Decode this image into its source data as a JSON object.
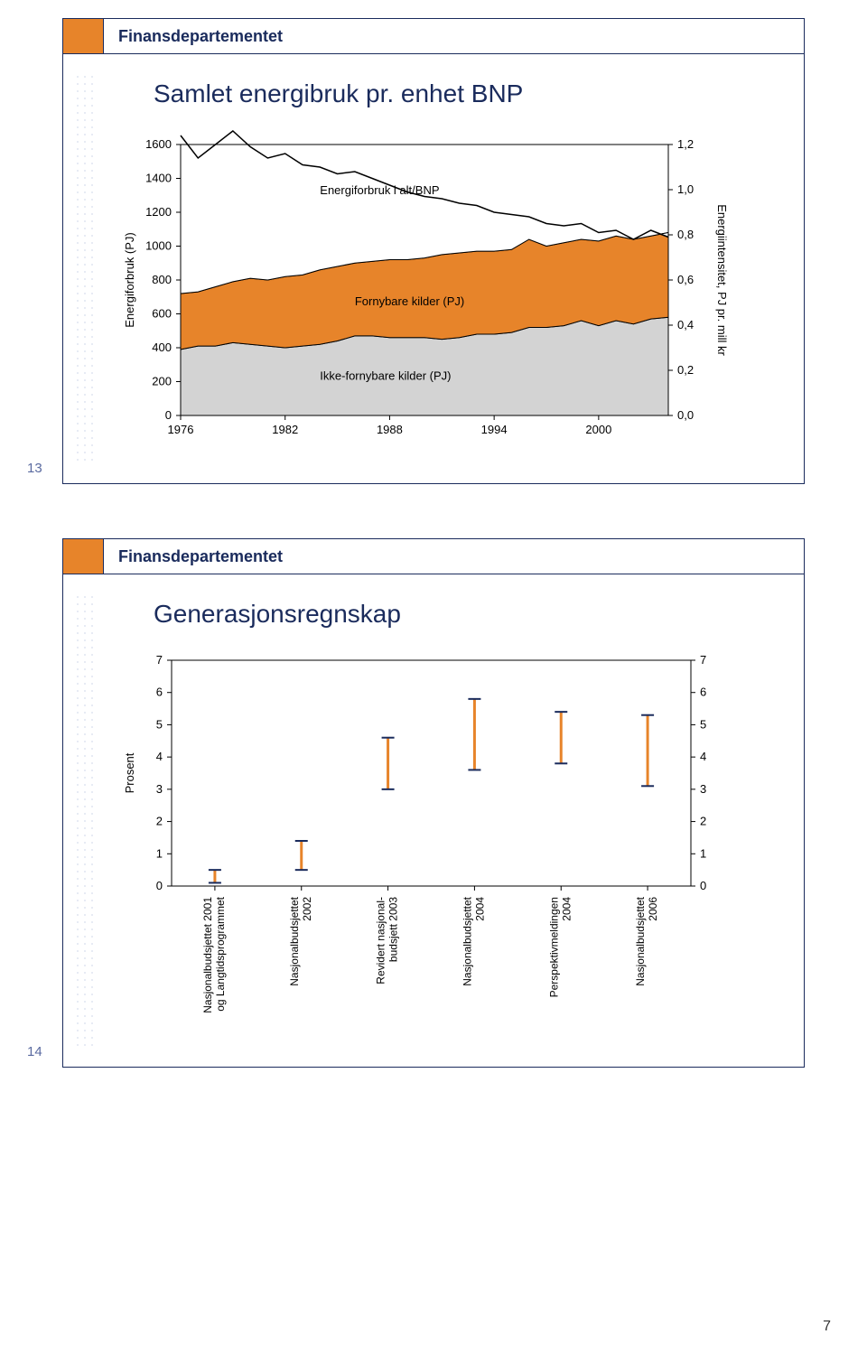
{
  "dept_label": "Finansdepartementet",
  "page_number": "7",
  "slide1": {
    "index": "13",
    "title": "Samlet energibruk pr. enhet BNP",
    "chart": {
      "type": "area+line",
      "x_ticks": [
        1976,
        1982,
        1988,
        1994,
        2000
      ],
      "x_min": 1976,
      "x_max": 2004,
      "y_left_label": "Energiforbruk (PJ)",
      "y_left_min": 0,
      "y_left_max": 1600,
      "y_left_step": 200,
      "y_right_label": "Energiintensitet, PJ pr. mill kr",
      "y_right_min": 0.0,
      "y_right_max": 1.2,
      "y_right_step": 0.2,
      "series_line": {
        "label": "Energiforbruk i alt/BNP",
        "color": "#000000",
        "fill": "#ffffff",
        "points": [
          [
            1976,
            1.24
          ],
          [
            1977,
            1.14
          ],
          [
            1978,
            1.2
          ],
          [
            1979,
            1.26
          ],
          [
            1980,
            1.19
          ],
          [
            1981,
            1.14
          ],
          [
            1982,
            1.16
          ],
          [
            1983,
            1.11
          ],
          [
            1984,
            1.1
          ],
          [
            1985,
            1.07
          ],
          [
            1986,
            1.08
          ],
          [
            1987,
            1.05
          ],
          [
            1988,
            1.02
          ],
          [
            1989,
            0.99
          ],
          [
            1990,
            0.97
          ],
          [
            1991,
            0.96
          ],
          [
            1992,
            0.94
          ],
          [
            1993,
            0.93
          ],
          [
            1994,
            0.9
          ],
          [
            1995,
            0.89
          ],
          [
            1996,
            0.88
          ],
          [
            1997,
            0.85
          ],
          [
            1998,
            0.84
          ],
          [
            1999,
            0.85
          ],
          [
            2000,
            0.81
          ],
          [
            2001,
            0.82
          ],
          [
            2002,
            0.78
          ],
          [
            2003,
            0.82
          ],
          [
            2004,
            0.79
          ]
        ]
      },
      "area_top": {
        "label": "Fornybare kilder (PJ)",
        "fill": "#e7842a",
        "stroke": "#000000",
        "points": [
          [
            1976,
            720
          ],
          [
            1977,
            730
          ],
          [
            1978,
            760
          ],
          [
            1979,
            790
          ],
          [
            1980,
            810
          ],
          [
            1981,
            800
          ],
          [
            1982,
            820
          ],
          [
            1983,
            830
          ],
          [
            1984,
            860
          ],
          [
            1985,
            880
          ],
          [
            1986,
            900
          ],
          [
            1987,
            910
          ],
          [
            1988,
            920
          ],
          [
            1989,
            920
          ],
          [
            1990,
            930
          ],
          [
            1991,
            950
          ],
          [
            1992,
            960
          ],
          [
            1993,
            970
          ],
          [
            1994,
            970
          ],
          [
            1995,
            980
          ],
          [
            1996,
            1040
          ],
          [
            1997,
            1000
          ],
          [
            1998,
            1020
          ],
          [
            1999,
            1040
          ],
          [
            2000,
            1030
          ],
          [
            2001,
            1060
          ],
          [
            2002,
            1040
          ],
          [
            2003,
            1060
          ],
          [
            2004,
            1080
          ]
        ]
      },
      "area_bottom": {
        "label": "Ikke-fornybare kilder (PJ)",
        "fill": "#d3d3d3",
        "stroke": "#000000",
        "points": [
          [
            1976,
            390
          ],
          [
            1977,
            410
          ],
          [
            1978,
            410
          ],
          [
            1979,
            430
          ],
          [
            1980,
            420
          ],
          [
            1981,
            410
          ],
          [
            1982,
            400
          ],
          [
            1983,
            410
          ],
          [
            1984,
            420
          ],
          [
            1985,
            440
          ],
          [
            1986,
            470
          ],
          [
            1987,
            470
          ],
          [
            1988,
            460
          ],
          [
            1989,
            460
          ],
          [
            1990,
            460
          ],
          [
            1991,
            450
          ],
          [
            1992,
            460
          ],
          [
            1993,
            480
          ],
          [
            1994,
            480
          ],
          [
            1995,
            490
          ],
          [
            1996,
            520
          ],
          [
            1997,
            520
          ],
          [
            1998,
            530
          ],
          [
            1999,
            560
          ],
          [
            2000,
            530
          ],
          [
            2001,
            560
          ],
          [
            2002,
            540
          ],
          [
            2003,
            570
          ],
          [
            2004,
            580
          ]
        ]
      },
      "background": "#ffffff",
      "axis_color": "#000000",
      "font_size": 13
    }
  },
  "slide2": {
    "index": "14",
    "title": "Generasjonsregnskap",
    "chart": {
      "type": "range-markers",
      "y_label": "Prosent",
      "y_min": 0,
      "y_max": 7,
      "y_step": 1,
      "categories": [
        "Nasjonalbudsjettet 2001\nog Langtidsprogrammet",
        "Nasjonalbudsjettet\n2002",
        "Revidert nasjonal-\nbudsjett 2003",
        "Nasjonalbudsjettet\n2004",
        "Perspektivmeldingen\n2004",
        "Nasjonalbudsjettet\n2006"
      ],
      "values": [
        {
          "low": 0.1,
          "high": 0.5
        },
        {
          "low": 0.5,
          "high": 1.4
        },
        {
          "low": 3.0,
          "high": 4.6
        },
        {
          "low": 3.6,
          "high": 5.8
        },
        {
          "low": 3.8,
          "high": 5.4
        },
        {
          "low": 3.1,
          "high": 5.3
        }
      ],
      "marker_color": "#e7842a",
      "marker_cap_color": "#1a2b5c",
      "axis_color": "#000000",
      "background": "#ffffff",
      "font_size": 13
    }
  }
}
